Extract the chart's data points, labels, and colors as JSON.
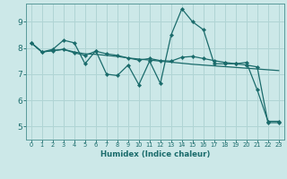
{
  "title": "",
  "xlabel": "Humidex (Indice chaleur)",
  "bg_color": "#cce8e8",
  "grid_color": "#b0d4d4",
  "line_color": "#1a6b6b",
  "spine_color": "#5a9a9a",
  "xlim": [
    -0.5,
    23.5
  ],
  "ylim": [
    4.5,
    9.7
  ],
  "yticks": [
    5,
    6,
    7,
    8,
    9
  ],
  "xticks": [
    0,
    1,
    2,
    3,
    4,
    5,
    6,
    7,
    8,
    9,
    10,
    11,
    12,
    13,
    14,
    15,
    16,
    17,
    18,
    19,
    20,
    21,
    22,
    23
  ],
  "series1": [
    8.2,
    7.85,
    7.95,
    8.3,
    8.2,
    7.4,
    7.9,
    7.0,
    6.95,
    7.35,
    6.6,
    7.5,
    6.65,
    8.5,
    9.5,
    9.0,
    8.7,
    7.4,
    7.4,
    7.4,
    7.45,
    6.4,
    5.2,
    5.2
  ],
  "series2": [
    8.2,
    7.85,
    7.9,
    7.95,
    7.85,
    7.78,
    7.76,
    7.72,
    7.68,
    7.62,
    7.58,
    7.54,
    7.5,
    7.46,
    7.42,
    7.38,
    7.35,
    7.32,
    7.29,
    7.26,
    7.23,
    7.2,
    7.17,
    7.14
  ],
  "series3": [
    8.2,
    7.85,
    7.9,
    7.95,
    7.82,
    7.72,
    7.88,
    7.78,
    7.72,
    7.62,
    7.54,
    7.6,
    7.52,
    7.5,
    7.65,
    7.68,
    7.6,
    7.52,
    7.45,
    7.4,
    7.35,
    7.28,
    5.15,
    5.15
  ]
}
